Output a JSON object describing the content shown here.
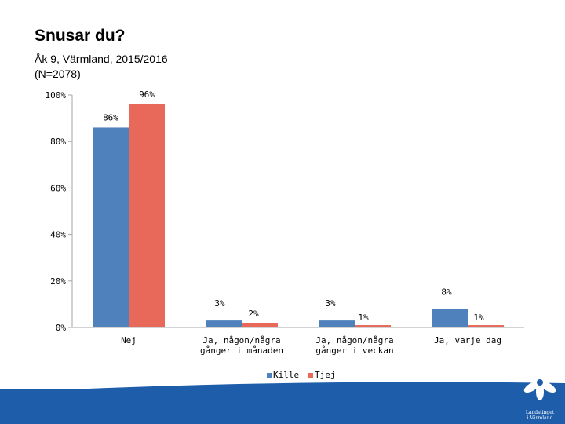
{
  "slide": {
    "title": "Snusar du?",
    "subtitle_line1": "Åk 9, Värmland, 2015/2016",
    "subtitle_line2": "(N=2078)"
  },
  "chart_data": {
    "type": "bar",
    "categories": [
      [
        "Nej"
      ],
      [
        "Ja, någon/några",
        "gånger i månaden"
      ],
      [
        "Ja, någon/några",
        "gånger i veckan"
      ],
      [
        "Ja, varje dag"
      ]
    ],
    "series": [
      {
        "name": "Kille",
        "color": "#4f81bd",
        "values": [
          86,
          3,
          3,
          8
        ],
        "labels": [
          "86%",
          "3%",
          "3%",
          "8%"
        ]
      },
      {
        "name": "Tjej",
        "color": "#e8695a",
        "values": [
          96,
          2,
          1,
          1
        ],
        "labels": [
          "96%",
          "2%",
          "1%",
          "1%"
        ]
      }
    ],
    "y_ticks": [
      "0%",
      "20%",
      "40%",
      "60%",
      "80%",
      "100%"
    ],
    "ylim": [
      0,
      100
    ],
    "legend_position": "bottom",
    "grid": false
  },
  "colors": {
    "footer": "#1d5da9",
    "footer_light": "#dce8f5"
  },
  "logo_icon": "landstinget-varmland-flower-icon",
  "logo": {
    "line1": "Landstinget",
    "line2": "i Värmland"
  }
}
